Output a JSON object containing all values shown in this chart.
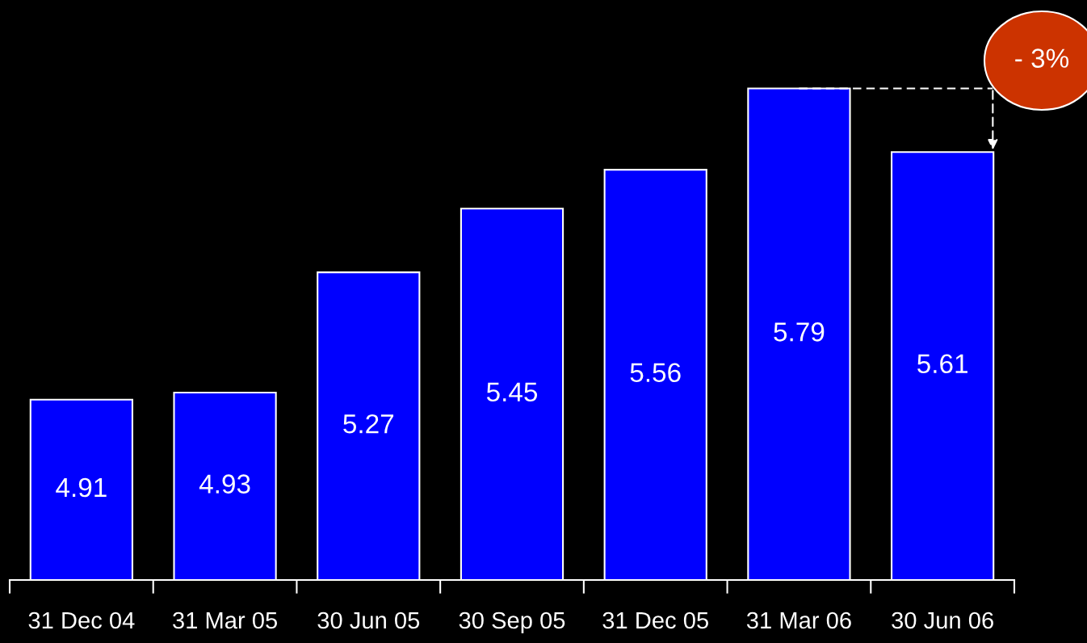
{
  "chart_data": {
    "type": "bar",
    "categories": [
      "31 Dec 04",
      "31 Mar 05",
      "30 Jun 05",
      "30 Sep 05",
      "31 Dec 05",
      "31 Mar 06",
      "30 Jun 06"
    ],
    "values": [
      4.91,
      4.93,
      5.27,
      5.45,
      5.56,
      5.79,
      5.61
    ],
    "color": "#0000ff",
    "data_labels": true,
    "ylim": [
      4.4,
      6.04
    ],
    "grid": false,
    "legend": false,
    "tick_labels": "x",
    "annotations": [
      "- 3%"
    ]
  }
}
